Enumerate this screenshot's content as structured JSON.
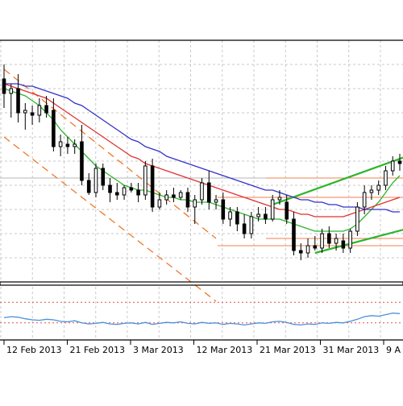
{
  "chart_data": [
    {
      "type": "candlestick",
      "title": "",
      "xlabel": "",
      "ylabel": "",
      "grid": true,
      "tick_labels": [
        "12 Feb 2013",
        "21 Feb 2013",
        "3 Mar 2013",
        "12 Mar 2013",
        "21 Mar 2013",
        "31 Mar 2013",
        "9 A"
      ],
      "ylim": [
        0,
        100
      ],
      "candles": [
        {
          "o": 84,
          "h": 90,
          "l": 72,
          "c": 78
        },
        {
          "o": 78,
          "h": 82,
          "l": 68,
          "c": 80
        },
        {
          "o": 80,
          "h": 86,
          "l": 66,
          "c": 70
        },
        {
          "o": 70,
          "h": 74,
          "l": 63,
          "c": 71
        },
        {
          "o": 70,
          "h": 73,
          "l": 65,
          "c": 69
        },
        {
          "o": 69,
          "h": 76,
          "l": 66,
          "c": 73
        },
        {
          "o": 73,
          "h": 77,
          "l": 68,
          "c": 70
        },
        {
          "o": 71,
          "h": 76,
          "l": 54,
          "c": 56
        },
        {
          "o": 56,
          "h": 61,
          "l": 52,
          "c": 58
        },
        {
          "o": 57,
          "h": 60,
          "l": 53,
          "c": 56
        },
        {
          "o": 56,
          "h": 59,
          "l": 53,
          "c": 57
        },
        {
          "o": 58,
          "h": 65,
          "l": 40,
          "c": 42
        },
        {
          "o": 42,
          "h": 45,
          "l": 36,
          "c": 37
        },
        {
          "o": 37,
          "h": 49,
          "l": 35,
          "c": 47
        },
        {
          "o": 47,
          "h": 49,
          "l": 38,
          "c": 40
        },
        {
          "o": 40,
          "h": 43,
          "l": 33,
          "c": 37
        },
        {
          "o": 37,
          "h": 41,
          "l": 34,
          "c": 36
        },
        {
          "o": 36,
          "h": 40,
          "l": 34,
          "c": 39
        },
        {
          "o": 39,
          "h": 41,
          "l": 37,
          "c": 38
        },
        {
          "o": 38,
          "h": 41,
          "l": 33,
          "c": 36
        },
        {
          "o": 36,
          "h": 50,
          "l": 34,
          "c": 48
        },
        {
          "o": 48,
          "h": 51,
          "l": 29,
          "c": 31
        },
        {
          "o": 31,
          "h": 37,
          "l": 30,
          "c": 34
        },
        {
          "o": 34,
          "h": 38,
          "l": 32,
          "c": 36
        },
        {
          "o": 36,
          "h": 39,
          "l": 33,
          "c": 35
        },
        {
          "o": 35,
          "h": 38,
          "l": 34,
          "c": 37
        },
        {
          "o": 37,
          "h": 39,
          "l": 29,
          "c": 31
        },
        {
          "o": 31,
          "h": 36,
          "l": 24,
          "c": 34
        },
        {
          "o": 34,
          "h": 43,
          "l": 32,
          "c": 41
        },
        {
          "o": 41,
          "h": 46,
          "l": 30,
          "c": 33
        },
        {
          "o": 33,
          "h": 36,
          "l": 30,
          "c": 34
        },
        {
          "o": 34,
          "h": 37,
          "l": 24,
          "c": 26
        },
        {
          "o": 26,
          "h": 31,
          "l": 23,
          "c": 29
        },
        {
          "o": 29,
          "h": 31,
          "l": 21,
          "c": 24
        },
        {
          "o": 24,
          "h": 28,
          "l": 18,
          "c": 20
        },
        {
          "o": 20,
          "h": 29,
          "l": 18,
          "c": 27
        },
        {
          "o": 27,
          "h": 31,
          "l": 25,
          "c": 28
        },
        {
          "o": 28,
          "h": 31,
          "l": 24,
          "c": 26
        },
        {
          "o": 26,
          "h": 36,
          "l": 25,
          "c": 34
        },
        {
          "o": 34,
          "h": 38,
          "l": 32,
          "c": 35
        },
        {
          "o": 33,
          "h": 36,
          "l": 24,
          "c": 26
        },
        {
          "o": 26,
          "h": 29,
          "l": 11,
          "c": 13
        },
        {
          "o": 13,
          "h": 16,
          "l": 9,
          "c": 12
        },
        {
          "o": 12,
          "h": 18,
          "l": 10,
          "c": 15
        },
        {
          "o": 15,
          "h": 19,
          "l": 13,
          "c": 14
        },
        {
          "o": 14,
          "h": 22,
          "l": 12,
          "c": 20
        },
        {
          "o": 20,
          "h": 23,
          "l": 14,
          "c": 16
        },
        {
          "o": 16,
          "h": 20,
          "l": 13,
          "c": 18
        },
        {
          "o": 17,
          "h": 20,
          "l": 12,
          "c": 14
        },
        {
          "o": 14,
          "h": 22,
          "l": 12,
          "c": 21
        },
        {
          "o": 21,
          "h": 33,
          "l": 19,
          "c": 31
        },
        {
          "o": 31,
          "h": 40,
          "l": 28,
          "c": 37
        },
        {
          "o": 37,
          "h": 40,
          "l": 34,
          "c": 38
        },
        {
          "o": 38,
          "h": 42,
          "l": 36,
          "c": 40
        },
        {
          "o": 40,
          "h": 48,
          "l": 38,
          "c": 46
        },
        {
          "o": 46,
          "h": 52,
          "l": 44,
          "c": 50
        },
        {
          "o": 50,
          "h": 53,
          "l": 46,
          "c": 49
        }
      ],
      "series": [
        {
          "color": "#2db52d",
          "values": [
            80,
            79,
            78,
            77,
            75,
            73,
            70,
            67,
            63,
            60,
            57,
            54,
            51,
            48,
            46,
            44,
            42,
            40,
            39,
            38,
            38,
            37,
            36,
            35,
            35,
            34,
            34,
            33,
            33,
            33,
            32,
            31,
            30,
            29,
            28,
            27,
            26,
            26,
            26,
            26,
            25,
            24,
            23,
            22,
            21,
            21,
            21,
            21,
            21,
            22,
            24,
            27,
            30,
            33,
            37,
            41,
            44
          ]
        },
        {
          "color": "#e03232",
          "values": [
            82,
            81,
            80,
            79,
            78,
            77,
            76,
            74,
            72,
            70,
            68,
            66,
            64,
            62,
            60,
            58,
            56,
            54,
            52,
            51,
            49,
            48,
            47,
            46,
            45,
            44,
            43,
            42,
            41,
            40,
            39,
            38,
            37,
            36,
            35,
            34,
            33,
            32,
            31,
            30,
            30,
            29,
            28,
            28,
            27,
            27,
            27,
            27,
            27,
            28,
            29,
            30,
            31,
            32,
            33,
            34,
            35
          ]
        },
        {
          "color": "#3232c8",
          "values": [
            82,
            82,
            82,
            81,
            81,
            80,
            79,
            78,
            77,
            76,
            74,
            73,
            71,
            69,
            67,
            65,
            63,
            61,
            59,
            58,
            56,
            55,
            54,
            52,
            51,
            50,
            49,
            48,
            47,
            46,
            45,
            44,
            43,
            42,
            41,
            40,
            39,
            38,
            38,
            37,
            36,
            35,
            34,
            34,
            33,
            33,
            32,
            32,
            31,
            31,
            31,
            30,
            30,
            30,
            30,
            29,
            29
          ]
        }
      ],
      "horizontal_levels": [
        {
          "y": 43,
          "color": "#b4b4b4"
        },
        {
          "y": 43,
          "color": "#f08050"
        },
        {
          "y": 35,
          "color": "#f08050"
        },
        {
          "y": 18,
          "color": "#f08050"
        },
        {
          "y": 15,
          "color": "#f08050"
        }
      ],
      "trend_channels": [
        {
          "color": "#f07828",
          "style": "dashed",
          "from": [
            0,
            88
          ],
          "to": [
            30,
            18
          ]
        },
        {
          "color": "#f07828",
          "style": "dashed",
          "from": [
            0,
            60
          ],
          "to": [
            30,
            -8
          ]
        },
        {
          "color": "#2db52d",
          "style": "solid",
          "from": [
            38,
            32
          ],
          "to": [
            57,
            52
          ]
        },
        {
          "color": "#2db52d",
          "style": "solid",
          "from": [
            44,
            12
          ],
          "to": [
            57,
            22
          ]
        }
      ]
    },
    {
      "type": "line",
      "title": "",
      "xlabel": "",
      "ylabel": "",
      "ylim": [
        0,
        100
      ],
      "series": [
        {
          "color": "#4a90d9",
          "values": [
            40,
            42,
            41,
            38,
            36,
            35,
            37,
            36,
            33,
            32,
            34,
            30,
            28,
            29,
            31,
            28,
            27,
            29,
            30,
            28,
            31,
            27,
            29,
            31,
            30,
            32,
            29,
            28,
            31,
            29,
            30,
            27,
            29,
            28,
            26,
            28,
            30,
            29,
            32,
            33,
            31,
            27,
            26,
            28,
            27,
            30,
            29,
            31,
            30,
            33,
            37,
            42,
            44,
            43,
            46,
            49,
            48
          ]
        }
      ],
      "horizontal_levels": [
        {
          "y": 70,
          "color": "#e05050"
        },
        {
          "y": 30,
          "color": "#e05050"
        }
      ]
    }
  ]
}
